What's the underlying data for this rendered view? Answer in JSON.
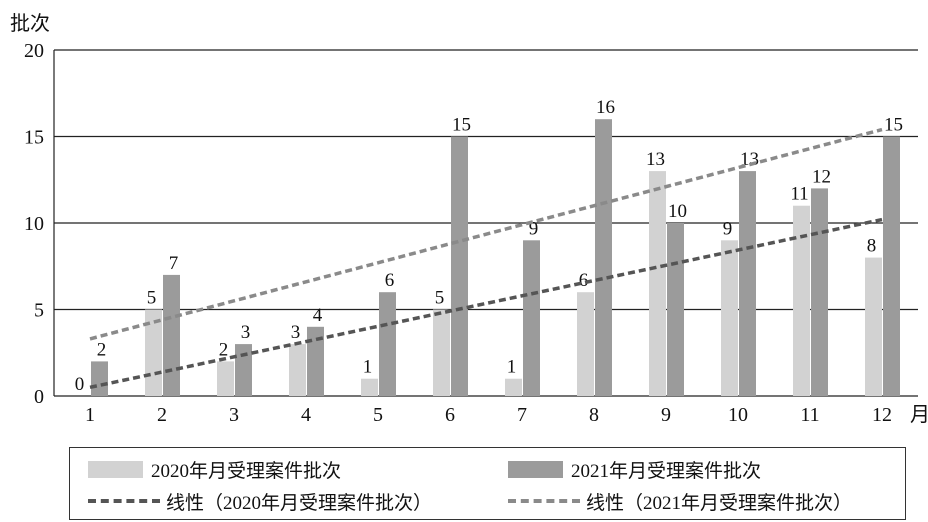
{
  "colors": {
    "series2020": "#d2d2d2",
    "series2021": "#9b9b9b",
    "trend2020": "#555555",
    "trend2021": "#8a8a8a",
    "grid": "#222222"
  },
  "chart_data": {
    "type": "bar",
    "ylabel": "批次",
    "xlabel": "月",
    "ylim": [
      0,
      20
    ],
    "yticks": [
      0,
      5,
      10,
      15,
      20
    ],
    "grid": true,
    "legend_position": "bottom",
    "categories": [
      "1",
      "2",
      "3",
      "4",
      "5",
      "6",
      "7",
      "8",
      "9",
      "10",
      "11",
      "12"
    ],
    "series": [
      {
        "name": "2020年月受理案件批次",
        "values": [
          0,
          5,
          2,
          3,
          1,
          5,
          1,
          6,
          13,
          9,
          11,
          8
        ]
      },
      {
        "name": "2021年月受理案件批次",
        "values": [
          2,
          7,
          3,
          4,
          6,
          15,
          9,
          16,
          10,
          13,
          12,
          15
        ]
      }
    ],
    "trendlines": [
      {
        "name": "线性（2020年月受理案件批次）",
        "series": 0,
        "start": 0.5,
        "end": 10.2
      },
      {
        "name": "线性（2021年月受理案件批次）",
        "series": 1,
        "start": 3.3,
        "end": 15.4
      }
    ]
  }
}
